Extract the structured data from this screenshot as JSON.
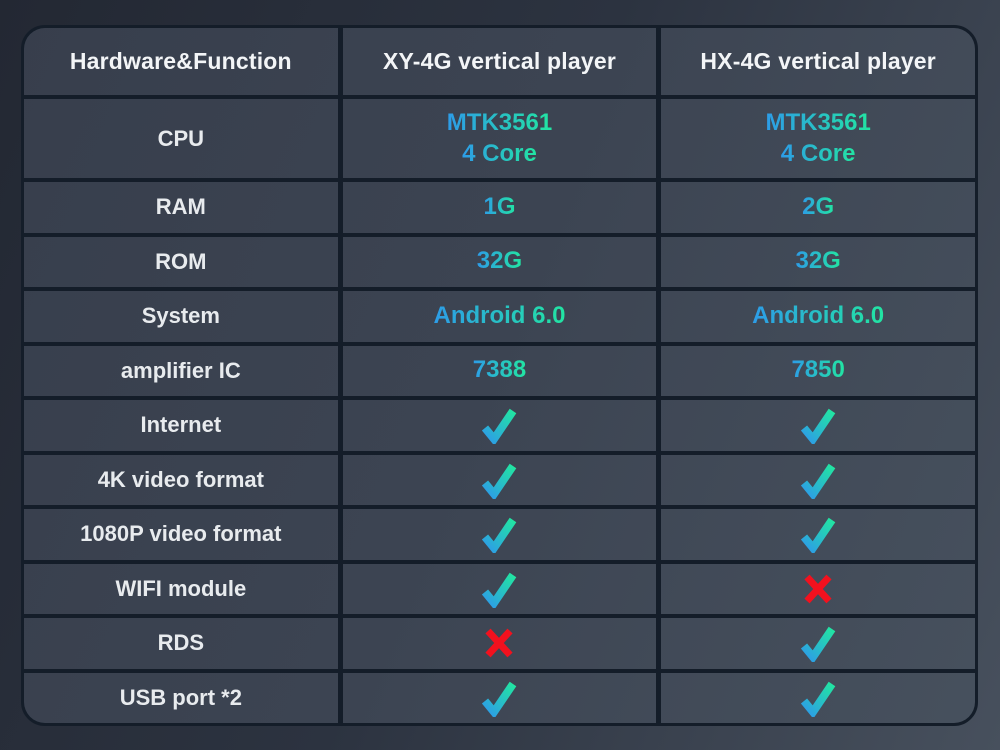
{
  "colors": {
    "page_bg_start": "#232833",
    "page_bg_end": "#47505d",
    "cell_bg_start": "#373e4c",
    "cell_bg_end": "#47515e",
    "border": "#141d29",
    "header_text": "#f3f5f7",
    "label_text": "#e8ebee",
    "value_gradient_start": "#2d9ce8",
    "value_gradient_end": "#22e5a2",
    "cross": "#f2111e"
  },
  "table": {
    "headers": [
      "Hardware&Function",
      "XY-4G vertical player",
      "HX-4G vertical player"
    ],
    "rows": [
      {
        "label": "CPU",
        "cells": [
          {
            "type": "text",
            "lines": [
              "MTK3561",
              "4 Core"
            ]
          },
          {
            "type": "text",
            "lines": [
              "MTK3561",
              "4 Core"
            ]
          }
        ]
      },
      {
        "label": "RAM",
        "cells": [
          {
            "type": "text",
            "lines": [
              "1G"
            ]
          },
          {
            "type": "text",
            "lines": [
              "2G"
            ]
          }
        ]
      },
      {
        "label": "ROM",
        "cells": [
          {
            "type": "text",
            "lines": [
              "32G"
            ]
          },
          {
            "type": "text",
            "lines": [
              "32G"
            ]
          }
        ]
      },
      {
        "label": "System",
        "cells": [
          {
            "type": "text",
            "lines": [
              "Android 6.0"
            ]
          },
          {
            "type": "text",
            "lines": [
              "Android 6.0"
            ]
          }
        ]
      },
      {
        "label": "amplifier IC",
        "cells": [
          {
            "type": "text",
            "lines": [
              "7388"
            ]
          },
          {
            "type": "text",
            "lines": [
              "7850"
            ]
          }
        ]
      },
      {
        "label": "Internet",
        "cells": [
          {
            "type": "check"
          },
          {
            "type": "check"
          }
        ]
      },
      {
        "label": "4K video format",
        "cells": [
          {
            "type": "check"
          },
          {
            "type": "check"
          }
        ]
      },
      {
        "label": "1080P video format",
        "cells": [
          {
            "type": "check"
          },
          {
            "type": "check"
          }
        ]
      },
      {
        "label": "WIFI module",
        "cells": [
          {
            "type": "check"
          },
          {
            "type": "cross"
          }
        ]
      },
      {
        "label": "RDS",
        "cells": [
          {
            "type": "cross"
          },
          {
            "type": "check"
          }
        ]
      },
      {
        "label": "USB port *2",
        "cells": [
          {
            "type": "check"
          },
          {
            "type": "check"
          }
        ]
      }
    ]
  },
  "chart_data": {
    "type": "table",
    "title": "Hardware&Function comparison",
    "columns": [
      "Hardware&Function",
      "XY-4G vertical player",
      "HX-4G vertical player"
    ],
    "rows": [
      [
        "CPU",
        "MTK3561 4 Core",
        "MTK3561 4 Core"
      ],
      [
        "RAM",
        "1G",
        "2G"
      ],
      [
        "ROM",
        "32G",
        "32G"
      ],
      [
        "System",
        "Android 6.0",
        "Android 6.0"
      ],
      [
        "amplifier IC",
        "7388",
        "7850"
      ],
      [
        "Internet",
        "yes",
        "yes"
      ],
      [
        "4K video format",
        "yes",
        "yes"
      ],
      [
        "1080P video format",
        "yes",
        "yes"
      ],
      [
        "WIFI module",
        "yes",
        "no"
      ],
      [
        "RDS",
        "no",
        "yes"
      ],
      [
        "USB port *2",
        "yes",
        "yes"
      ]
    ]
  }
}
